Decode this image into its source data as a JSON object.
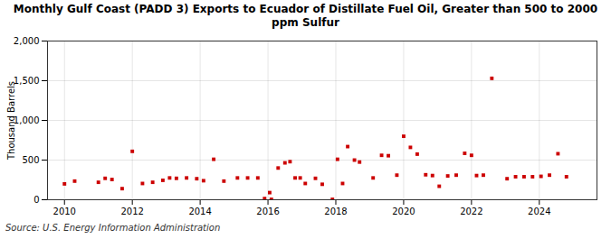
{
  "chart_data": {
    "type": "scatter",
    "title": "Monthly Gulf Coast (PADD 3) Exports to Ecuador of Distillate Fuel Oil, Greater than 500 to 2000\nppm Sulfur",
    "ylabel": "Thousand Barrels",
    "source": "Source: U.S. Energy Information Administration",
    "color": "#cc0000",
    "marker": "square",
    "grid": true,
    "xlim": [
      2009.5,
      2025.7
    ],
    "xticks": [
      2010,
      2012,
      2014,
      2016,
      2018,
      2020,
      2022,
      2024
    ],
    "ylim": [
      0,
      2000
    ],
    "yticks": [
      0,
      500,
      {
        "value": 1000,
        "label": "1,000"
      },
      {
        "value": 1500,
        "label": "1,500"
      },
      {
        "value": 2000,
        "label": "2,000"
      }
    ],
    "x": [
      2010.0,
      2010.3,
      2011.0,
      2011.2,
      2011.4,
      2011.7,
      2012.0,
      2012.3,
      2012.6,
      2012.9,
      2013.1,
      2013.3,
      2013.6,
      2013.9,
      2014.1,
      2014.4,
      2014.7,
      2015.1,
      2015.4,
      2015.7,
      2015.9,
      2016.05,
      2016.1,
      2016.3,
      2016.5,
      2016.65,
      2016.8,
      2016.95,
      2017.1,
      2017.4,
      2017.6,
      2017.9,
      2018.05,
      2018.2,
      2018.35,
      2018.55,
      2018.7,
      2019.1,
      2019.35,
      2019.55,
      2019.8,
      2020.0,
      2020.2,
      2020.4,
      2020.65,
      2020.85,
      2021.05,
      2021.3,
      2021.55,
      2021.8,
      2022.0,
      2022.15,
      2022.35,
      2022.6,
      2023.05,
      2023.3,
      2023.55,
      2023.8,
      2024.05,
      2024.3,
      2024.55,
      2024.8
    ],
    "values": [
      200,
      235,
      220,
      270,
      255,
      140,
      610,
      205,
      220,
      245,
      275,
      270,
      275,
      265,
      240,
      510,
      235,
      275,
      275,
      275,
      15,
      90,
      5,
      400,
      465,
      480,
      275,
      275,
      205,
      270,
      195,
      5,
      510,
      205,
      670,
      500,
      475,
      275,
      560,
      555,
      310,
      800,
      660,
      575,
      315,
      305,
      170,
      300,
      310,
      585,
      560,
      305,
      310,
      1530,
      265,
      290,
      290,
      290,
      295,
      310,
      580,
      290
    ]
  }
}
